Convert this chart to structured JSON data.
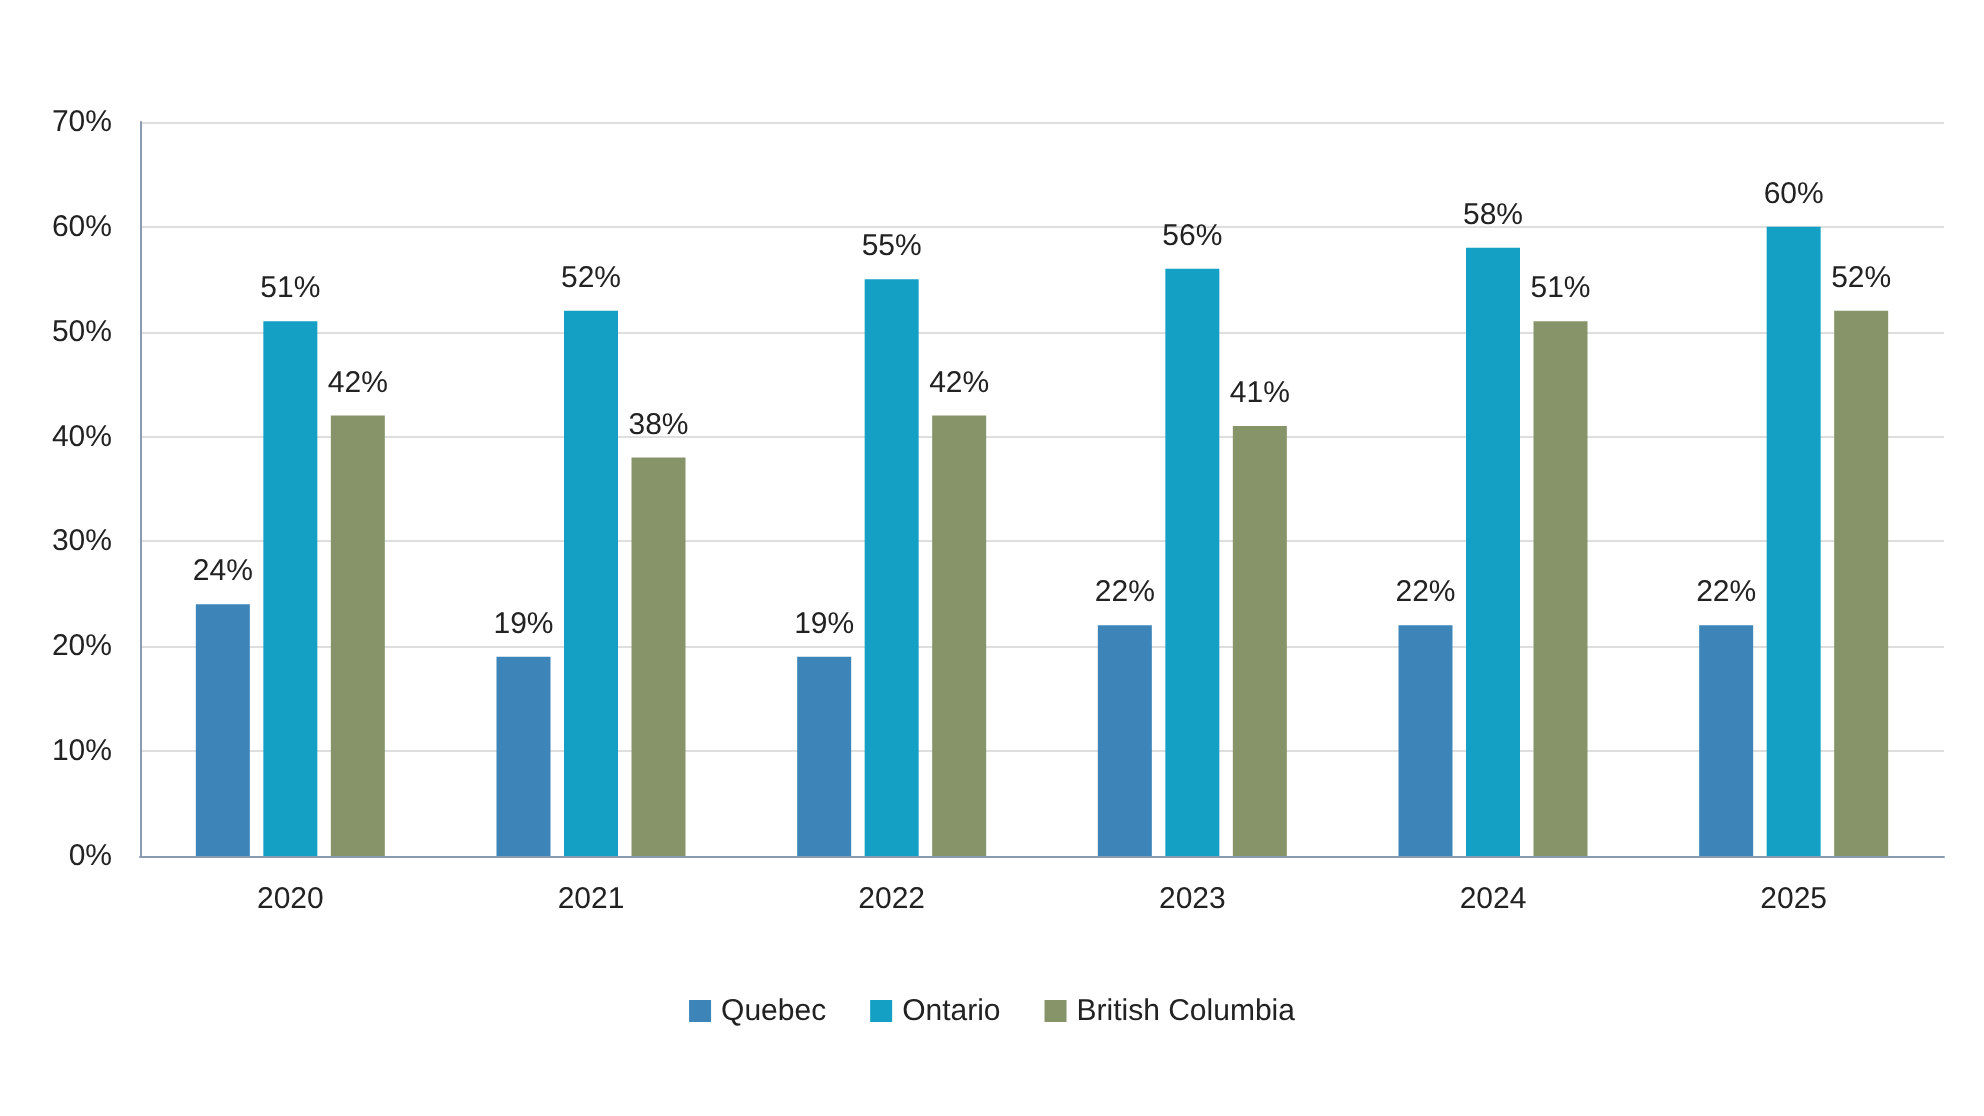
{
  "chart_data": {
    "type": "bar",
    "categories": [
      "2020",
      "2021",
      "2022",
      "2023",
      "2024",
      "2025"
    ],
    "series": [
      {
        "name": "Quebec",
        "color": "#3d85b8",
        "values": [
          24,
          19,
          19,
          22,
          22,
          22
        ],
        "value_labels": [
          "24%",
          "19%",
          "19%",
          "22%",
          "22%",
          "22%"
        ]
      },
      {
        "name": "Ontario",
        "color": "#13a0c4",
        "values": [
          51,
          52,
          55,
          56,
          58,
          60
        ],
        "value_labels": [
          "51%",
          "52%",
          "55%",
          "56%",
          "58%",
          "60%"
        ]
      },
      {
        "name": "British Columbia",
        "color": "#87946a",
        "values": [
          42,
          38,
          42,
          41,
          51,
          52
        ],
        "value_labels": [
          "42%",
          "38%",
          "42%",
          "41%",
          "51%",
          "52%"
        ]
      }
    ],
    "ylim": [
      0,
      70
    ],
    "yticks": [
      {
        "value": 0,
        "label": "0%"
      },
      {
        "value": 10,
        "label": "10%"
      },
      {
        "value": 20,
        "label": "20%"
      },
      {
        "value": 30,
        "label": "30%"
      },
      {
        "value": 40,
        "label": "40%"
      },
      {
        "value": 50,
        "label": "50%"
      },
      {
        "value": 60,
        "label": "60%"
      },
      {
        "value": 70,
        "label": "70%"
      }
    ],
    "grid": "y",
    "legend": "bottom"
  }
}
